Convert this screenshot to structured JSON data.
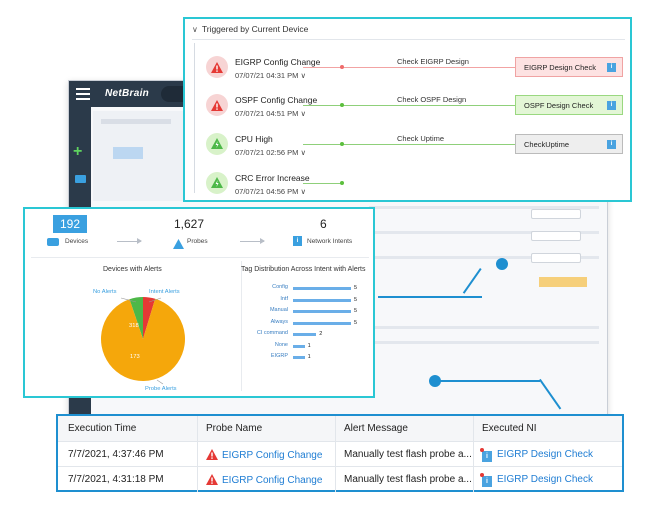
{
  "app": {
    "brand": "NetBrain",
    "colors": {
      "accent": "#2ac7d4",
      "link": "#1f7dd3",
      "alert": "#e53935",
      "ok": "#5cbf3d",
      "pie_main": "#f5a70b"
    }
  },
  "triggered": {
    "title": "Triggered by Current Device",
    "nodes": [
      {
        "name": "EIGRP Config Change",
        "time": "07/07/21 04:31 PM",
        "status": "alert",
        "icon": "warning-icon",
        "check": "Check EIGRP Design",
        "ni": "EIGRP Design Check",
        "ni_state": "red"
      },
      {
        "name": "OSPF Config Change",
        "time": "07/07/21 04:51 PM",
        "status": "alert",
        "icon": "warning-icon",
        "check": "Check OSPF Design",
        "ni": "OSPF Design Check",
        "ni_state": "green"
      },
      {
        "name": "CPU High",
        "time": "07/07/21 02:56 PM",
        "status": "ok",
        "icon": "bolt-icon",
        "check": "Check Uptime",
        "ni": "CheckUptime",
        "ni_state": "gray"
      },
      {
        "name": "CRC Error Increase",
        "time": "07/07/21 04:56 PM",
        "status": "ok",
        "icon": "bolt-icon",
        "check": "",
        "ni": "",
        "ni_state": ""
      }
    ]
  },
  "stats": {
    "devices": {
      "count": "192",
      "label": "Devices"
    },
    "probes": {
      "count": "1,627",
      "label": "Probes"
    },
    "intents": {
      "count": "6",
      "label": "Network Intents"
    },
    "pie_title": "Devices with Alerts",
    "bar_title": "Tag Distribution Across Intent with Alerts",
    "pie_labels": {
      "no_alerts": "No Alerts",
      "intent_alerts": "Intent Alerts",
      "probe_alerts": "Probe Alerts",
      "inner_small": "318",
      "inner_big": "173"
    }
  },
  "chart_data": [
    {
      "type": "pie",
      "title": "Devices with Alerts",
      "slices": [
        {
          "name": "Probe Alerts",
          "value": 173,
          "color": "#f5a70b"
        },
        {
          "name": "No Alerts",
          "value": 10,
          "color": "#4db848"
        },
        {
          "name": "Intent Alerts",
          "value": 9,
          "color": "#e53935"
        }
      ]
    },
    {
      "type": "bar",
      "title": "Tag Distribution Across Intent with Alerts",
      "orientation": "horizontal",
      "categories": [
        "Config",
        "Intf",
        "Manual",
        "Always",
        "CI command",
        "None",
        "EIGRP"
      ],
      "values": [
        5,
        5,
        5,
        5,
        2,
        1,
        1
      ],
      "xlim": [
        0,
        5
      ]
    }
  ],
  "table": {
    "headers": [
      "Execution Time",
      "Probe Name",
      "Alert Message",
      "Executed NI"
    ],
    "rows": [
      {
        "time": "7/7/2021, 4:37:46 PM",
        "probe": "EIGRP Config Change",
        "message": "Manually test flash probe a...",
        "ni": "EIGRP Design Check"
      },
      {
        "time": "7/7/2021, 4:31:18 PM",
        "probe": "EIGRP Config Change",
        "message": "Manually test flash probe a...",
        "ni": "EIGRP Design Check"
      }
    ]
  }
}
